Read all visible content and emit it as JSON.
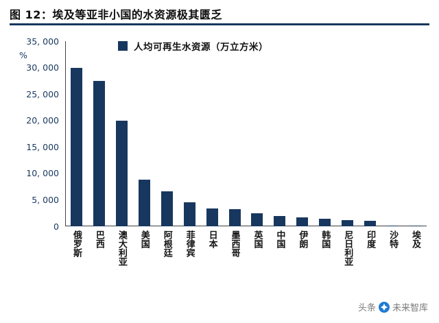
{
  "figure": {
    "title": "图 12：埃及等亚非小国的水资源极其匮乏"
  },
  "chart_data": {
    "type": "bar",
    "title": "图 12：埃及等亚非小国的水资源极其匮乏",
    "legend_label": "人均可再生水资源（万立方米）",
    "legend_position": "top",
    "ylabel": "%",
    "ylim": [
      0,
      35000
    ],
    "ytick_interval": 5000,
    "grid": false,
    "bar_color": "#17375E",
    "yticks": [
      {
        "value": 0,
        "label": "0"
      },
      {
        "value": 5000,
        "label": "5, 000"
      },
      {
        "value": 10000,
        "label": "10, 000"
      },
      {
        "value": 15000,
        "label": "15, 000"
      },
      {
        "value": 20000,
        "label": "20, 000"
      },
      {
        "value": 25000,
        "label": "25, 000"
      },
      {
        "value": 30000,
        "label": "30, 000"
      },
      {
        "value": 35000,
        "label": "35, 000"
      }
    ],
    "categories": [
      "俄罗斯",
      "巴西",
      "澳大利亚",
      "美国",
      "阿根廷",
      "菲律宾",
      "日本",
      "墨西哥",
      "英国",
      "中国",
      "伊朗",
      "韩国",
      "尼日利亚",
      "印度",
      "沙特",
      "埃及"
    ],
    "values": [
      30000,
      27500,
      20000,
      8800,
      6600,
      4600,
      3400,
      3300,
      2400,
      2000,
      1700,
      1400,
      1200,
      1100,
      100,
      30
    ]
  },
  "watermark": {
    "source": "头条",
    "name": "未来智库"
  },
  "colors": {
    "accent": "#17375E",
    "axis": "#404040",
    "watermark_text": "#7a7a7a",
    "logo_blue": "#1f7ad4"
  }
}
